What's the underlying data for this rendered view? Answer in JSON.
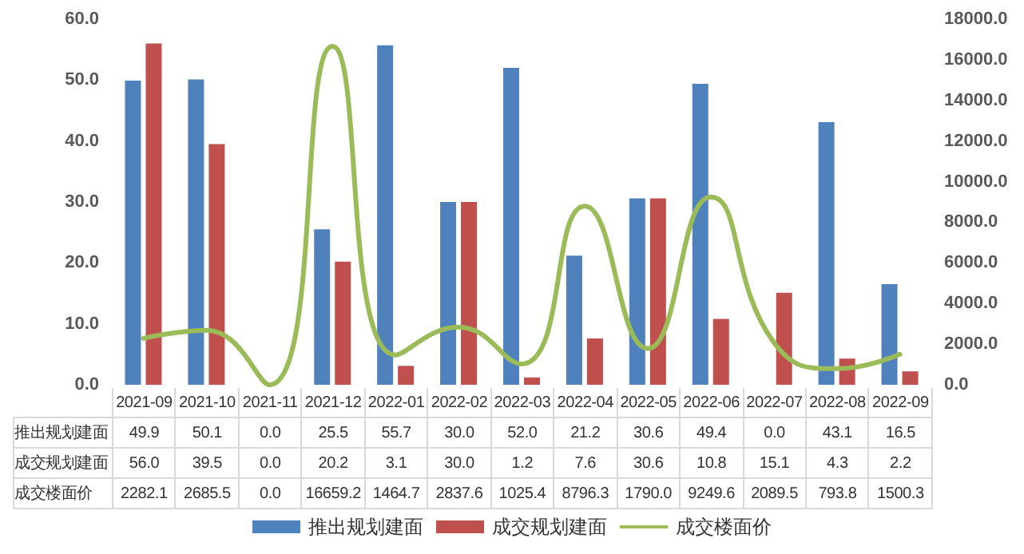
{
  "chart_data": {
    "type": "bar",
    "categories": [
      "2021-09",
      "2021-10",
      "2021-11",
      "2021-12",
      "2022-01",
      "2022-02",
      "2022-03",
      "2022-04",
      "2022-05",
      "2022-06",
      "2022-07",
      "2022-08",
      "2022-09"
    ],
    "series": [
      {
        "name": "推出规划建面",
        "color": "#4f81bd",
        "values": [
          49.9,
          50.1,
          0.0,
          25.5,
          55.7,
          30.0,
          52.0,
          21.2,
          30.6,
          49.4,
          0.0,
          43.1,
          16.5
        ],
        "value_labels": [
          "49.9",
          "50.1",
          "0.0",
          "25.5",
          "55.7",
          "30.0",
          "52.0",
          "21.2",
          "30.6",
          "49.4",
          "0.0",
          "43.1",
          "16.5"
        ]
      },
      {
        "name": "成交规划建面",
        "color": "#c0504d",
        "values": [
          56.0,
          39.5,
          0.0,
          20.2,
          3.1,
          30.0,
          1.2,
          7.6,
          30.6,
          10.8,
          15.1,
          4.3,
          2.2
        ],
        "value_labels": [
          "56.0",
          "39.5",
          "0.0",
          "20.2",
          "3.1",
          "30.0",
          "1.2",
          "7.6",
          "30.6",
          "10.8",
          "15.1",
          "4.3",
          "2.2"
        ]
      },
      {
        "name": "成交楼面价",
        "type": "line",
        "axis": "y2",
        "color": "#9bbb59",
        "values": [
          2282.1,
          2685.5,
          0.0,
          16659.2,
          1464.7,
          2837.6,
          1025.4,
          8796.3,
          1790.0,
          9249.6,
          2089.5,
          793.8,
          1500.3
        ],
        "value_labels": [
          "2282.1",
          "2685.5",
          "0.0",
          "16659.2",
          "1464.7",
          "2837.6",
          "1025.4",
          "8796.3",
          "1790.0",
          "9249.6",
          "2089.5",
          "793.8",
          "1500.3"
        ]
      }
    ],
    "ylim": [
      0,
      60
    ],
    "yticks": [
      {
        "value": 0,
        "label": "0.0"
      },
      {
        "value": 10,
        "label": "10.0"
      },
      {
        "value": 20,
        "label": "20.0"
      },
      {
        "value": 30,
        "label": "30.0"
      },
      {
        "value": 40,
        "label": "40.0"
      },
      {
        "value": 50,
        "label": "50.0"
      },
      {
        "value": 60,
        "label": "60.0"
      }
    ],
    "y2lim": [
      0,
      18000
    ],
    "y2ticks": [
      {
        "value": 0,
        "label": "0.0"
      },
      {
        "value": 2000,
        "label": "2000.0"
      },
      {
        "value": 4000,
        "label": "4000.0"
      },
      {
        "value": 6000,
        "label": "6000.0"
      },
      {
        "value": 8000,
        "label": "8000.0"
      },
      {
        "value": 10000,
        "label": "10000.0"
      },
      {
        "value": 12000,
        "label": "12000.0"
      },
      {
        "value": 14000,
        "label": "14000.0"
      },
      {
        "value": 16000,
        "label": "16000.0"
      },
      {
        "value": 18000,
        "label": "18000.0"
      }
    ],
    "legend": "bottom",
    "marker": "none",
    "line_style": "solid"
  }
}
